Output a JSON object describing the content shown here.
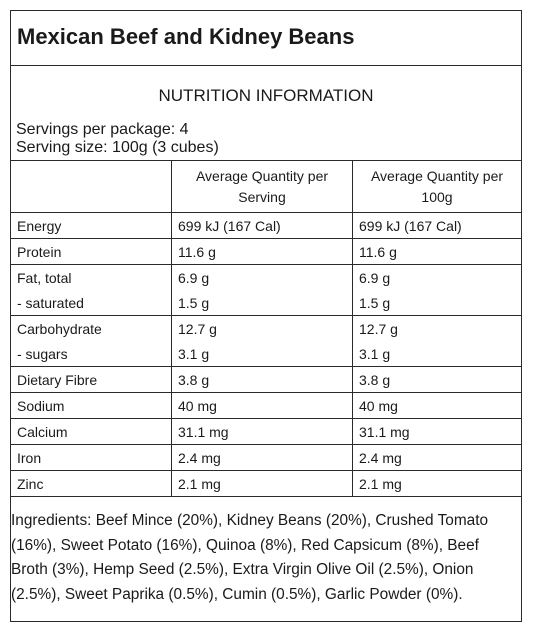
{
  "title": "Mexican Beef and Kidney Beans",
  "heading": "NUTRITION INFORMATION",
  "servings_per_package": "Servings per package: 4",
  "serving_size": "Serving size: 100g (3 cubes)",
  "table": {
    "headers": [
      "",
      "Average Quantity per Serving",
      "Average Quantity per 100g"
    ],
    "groups": [
      [
        [
          "Energy",
          "699 kJ (167 Cal)",
          "699 kJ (167 Cal)"
        ]
      ],
      [
        [
          "Protein",
          "11.6 g",
          "11.6 g"
        ]
      ],
      [
        [
          "Fat, total",
          "6.9 g",
          "6.9 g"
        ],
        [
          "- saturated",
          "1.5 g",
          "1.5 g"
        ]
      ],
      [
        [
          "Carbohydrate",
          "12.7 g",
          "12.7 g"
        ],
        [
          "- sugars",
          "3.1 g",
          "3.1 g"
        ]
      ],
      [
        [
          "Dietary Fibre",
          "3.8 g",
          "3.8 g"
        ]
      ],
      [
        [
          "Sodium",
          "40 mg",
          "40 mg"
        ]
      ],
      [
        [
          "Calcium",
          "31.1 mg",
          "31.1 mg"
        ]
      ],
      [
        [
          "Iron",
          "2.4 mg",
          "2.4 mg"
        ]
      ],
      [
        [
          "Zinc",
          "2.1 mg",
          "2.1 mg"
        ]
      ]
    ]
  },
  "ingredients": "Ingredients: Beef Mince (20%), Kidney Beans (20%), Crushed Tomato (16%), Sweet Potato (16%), Quinoa (8%), Red Capsicum (8%), Beef Broth (3%), Hemp Seed (2.5%), Extra Virgin Olive Oil (2.5%), Onion (2.5%), Sweet Paprika (0.5%), Cumin (0.5%), Garlic Powder (0%)."
}
